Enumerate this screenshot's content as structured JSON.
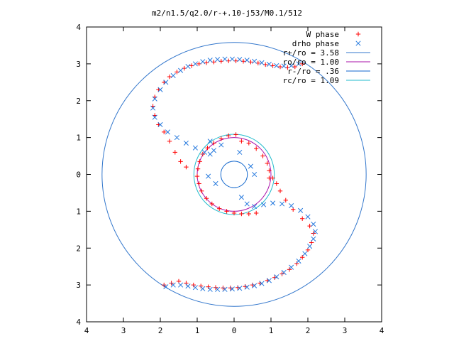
{
  "chart_data": {
    "type": "scatter",
    "title": "m2/n1.5/q2.0/r-+.10-j53/M0.1/512",
    "xlabel": "",
    "ylabel": "",
    "xlim": [
      -4,
      4
    ],
    "ylim": [
      -4,
      4
    ],
    "x_tick_labels": [
      "4",
      "3",
      "2",
      "1",
      "0",
      "1",
      "2",
      "3",
      "4"
    ],
    "y_tick_labels": [
      "4",
      "3",
      "2",
      "1",
      "0",
      "1",
      "2",
      "3",
      "4"
    ],
    "grid": false,
    "legend_position": "top-right",
    "legend": [
      {
        "label": "W phase",
        "kind": "points",
        "marker": "plus",
        "color": "#ff0000"
      },
      {
        "label": "drho phase",
        "kind": "points",
        "marker": "cross",
        "color": "#2277dd"
      },
      {
        "label": "r+/ro = 3.58",
        "kind": "circle",
        "radius": 3.58,
        "color": "#3377cc"
      },
      {
        "label": "ro/ro = 1.00",
        "kind": "circle",
        "radius": 1.0,
        "color": "#aa11aa"
      },
      {
        "label": "r-/ro = .36",
        "kind": "circle",
        "radius": 0.36,
        "color": "#1166cc"
      },
      {
        "label": "rc/ro = 1.09",
        "kind": "circle",
        "radius": 1.09,
        "color": "#22bbcc"
      }
    ],
    "series": [
      {
        "name": "W phase",
        "marker": "plus",
        "color": "#ff0000",
        "points": [
          [
            -1.9,
            -3.0
          ],
          [
            -1.7,
            -2.95
          ],
          [
            -1.5,
            -2.9
          ],
          [
            -1.3,
            -2.95
          ],
          [
            -1.1,
            -3.0
          ],
          [
            -0.9,
            -3.03
          ],
          [
            -0.7,
            -3.05
          ],
          [
            -0.5,
            -3.07
          ],
          [
            -0.3,
            -3.08
          ],
          [
            -0.1,
            -3.08
          ],
          [
            0.1,
            -3.07
          ],
          [
            0.3,
            -3.04
          ],
          [
            0.5,
            -3.0
          ],
          [
            0.7,
            -2.95
          ],
          [
            0.9,
            -2.88
          ],
          [
            1.1,
            -2.8
          ],
          [
            1.3,
            -2.7
          ],
          [
            1.5,
            -2.58
          ],
          [
            1.7,
            -2.42
          ],
          [
            1.85,
            -2.25
          ],
          [
            2.0,
            -2.05
          ],
          [
            2.1,
            -1.85
          ],
          [
            2.15,
            -1.6
          ],
          [
            2.05,
            -1.4
          ],
          [
            1.85,
            -1.2
          ],
          [
            1.6,
            -0.95
          ],
          [
            1.4,
            -0.7
          ],
          [
            1.25,
            -0.45
          ],
          [
            1.15,
            -0.25
          ],
          [
            1.05,
            -0.1
          ],
          [
            0.6,
            -1.05
          ],
          [
            0.4,
            -1.07
          ],
          [
            0.2,
            -1.07
          ],
          [
            0.0,
            -1.05
          ],
          [
            -0.2,
            -1.0
          ],
          [
            -0.4,
            -0.93
          ],
          [
            -0.6,
            -0.8
          ],
          [
            -0.75,
            -0.65
          ],
          [
            -0.88,
            -0.45
          ],
          [
            -0.95,
            -0.25
          ],
          [
            -1.0,
            -0.05
          ],
          [
            -0.98,
            0.15
          ],
          [
            -0.93,
            0.35
          ],
          [
            -0.85,
            0.55
          ],
          [
            -0.72,
            0.72
          ],
          [
            -0.55,
            0.85
          ],
          [
            -0.35,
            0.97
          ],
          [
            -0.15,
            1.05
          ],
          [
            0.05,
            1.08
          ],
          [
            0.2,
            0.9
          ],
          [
            0.4,
            0.85
          ],
          [
            0.6,
            0.7
          ],
          [
            0.78,
            0.5
          ],
          [
            0.9,
            0.3
          ],
          [
            0.95,
            0.1
          ],
          [
            0.95,
            -0.1
          ],
          [
            -1.3,
            0.2
          ],
          [
            -1.45,
            0.35
          ],
          [
            -1.6,
            0.6
          ],
          [
            -1.75,
            0.9
          ],
          [
            -1.9,
            1.15
          ],
          [
            -2.05,
            1.35
          ],
          [
            -2.15,
            1.6
          ],
          [
            -2.2,
            1.85
          ],
          [
            -2.15,
            2.1
          ],
          [
            -2.05,
            2.3
          ],
          [
            -1.9,
            2.5
          ],
          [
            -1.75,
            2.65
          ],
          [
            -1.55,
            2.78
          ],
          [
            -1.35,
            2.88
          ],
          [
            -1.15,
            2.95
          ],
          [
            -0.95,
            3.0
          ],
          [
            -0.75,
            3.03
          ],
          [
            -0.55,
            3.05
          ],
          [
            -0.35,
            3.07
          ],
          [
            -0.15,
            3.08
          ],
          [
            0.05,
            3.08
          ],
          [
            0.25,
            3.07
          ],
          [
            0.45,
            3.05
          ],
          [
            0.65,
            3.02
          ],
          [
            0.85,
            2.98
          ],
          [
            1.05,
            2.95
          ],
          [
            1.25,
            2.92
          ],
          [
            1.45,
            2.9
          ],
          [
            1.65,
            2.92
          ],
          [
            1.85,
            3.0
          ]
        ]
      },
      {
        "name": "drho phase",
        "marker": "cross",
        "color": "#2277dd",
        "points": [
          [
            -1.85,
            -3.05
          ],
          [
            -1.65,
            -3.0
          ],
          [
            -1.45,
            -3.0
          ],
          [
            -1.25,
            -3.03
          ],
          [
            -1.05,
            -3.07
          ],
          [
            -0.85,
            -3.1
          ],
          [
            -0.65,
            -3.12
          ],
          [
            -0.45,
            -3.12
          ],
          [
            -0.25,
            -3.12
          ],
          [
            -0.05,
            -3.11
          ],
          [
            0.15,
            -3.09
          ],
          [
            0.35,
            -3.06
          ],
          [
            0.55,
            -3.02
          ],
          [
            0.75,
            -2.96
          ],
          [
            0.95,
            -2.88
          ],
          [
            1.15,
            -2.78
          ],
          [
            1.35,
            -2.66
          ],
          [
            1.55,
            -2.52
          ],
          [
            1.75,
            -2.35
          ],
          [
            1.92,
            -2.15
          ],
          [
            2.05,
            -1.95
          ],
          [
            2.15,
            -1.75
          ],
          [
            2.2,
            -1.55
          ],
          [
            2.15,
            -1.35
          ],
          [
            2.0,
            -1.15
          ],
          [
            1.8,
            -0.98
          ],
          [
            1.55,
            -0.85
          ],
          [
            1.3,
            -0.8
          ],
          [
            1.05,
            -0.78
          ],
          [
            0.8,
            -0.82
          ],
          [
            0.55,
            -0.87
          ],
          [
            0.35,
            -0.8
          ],
          [
            -0.35,
            0.8
          ],
          [
            -0.55,
            0.65
          ],
          [
            -0.8,
            0.6
          ],
          [
            -1.05,
            0.72
          ],
          [
            -1.3,
            0.85
          ],
          [
            -1.55,
            1.0
          ],
          [
            -1.8,
            1.15
          ],
          [
            -2.0,
            1.35
          ],
          [
            -2.15,
            1.55
          ],
          [
            -2.2,
            1.8
          ],
          [
            -2.15,
            2.05
          ],
          [
            -2.0,
            2.3
          ],
          [
            -1.85,
            2.5
          ],
          [
            -1.65,
            2.68
          ],
          [
            -1.45,
            2.82
          ],
          [
            -1.25,
            2.93
          ],
          [
            -1.05,
            3.0
          ],
          [
            -0.85,
            3.06
          ],
          [
            -0.65,
            3.1
          ],
          [
            -0.45,
            3.12
          ],
          [
            -0.25,
            3.13
          ],
          [
            -0.05,
            3.13
          ],
          [
            0.15,
            3.12
          ],
          [
            0.35,
            3.1
          ],
          [
            0.55,
            3.07
          ],
          [
            0.75,
            3.03
          ],
          [
            0.95,
            2.99
          ],
          [
            1.15,
            2.95
          ],
          [
            1.35,
            2.94
          ],
          [
            1.55,
            2.95
          ],
          [
            1.75,
            3.0
          ],
          [
            -0.65,
            0.55
          ],
          [
            -0.65,
            0.9
          ],
          [
            0.2,
            -0.62
          ],
          [
            0.15,
            0.6
          ],
          [
            0.45,
            0.22
          ],
          [
            0.55,
            0.0
          ],
          [
            -0.7,
            -0.05
          ],
          [
            -0.5,
            -0.25
          ]
        ]
      }
    ]
  }
}
